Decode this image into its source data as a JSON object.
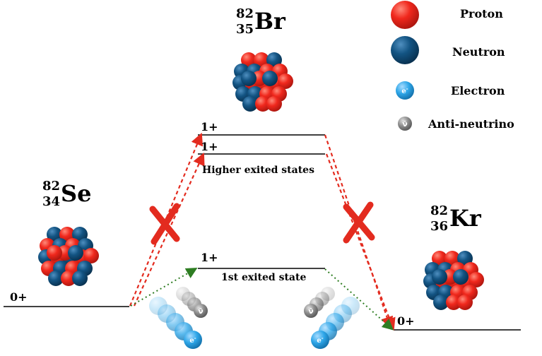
{
  "colors": {
    "proton": "#e8261c",
    "neutron": "#0f4f7e",
    "electron": "#2ea6e8",
    "antineutrino": "#8d8d8d",
    "forbidden_path": "#e32b1f",
    "allowed_path": "#2e7d22",
    "level_line": "#000000"
  },
  "legend": [
    {
      "key": "proton",
      "label": "Proton",
      "icon": "proton-sphere-icon"
    },
    {
      "key": "neutron",
      "label": "Neutron",
      "icon": "neutron-sphere-icon"
    },
    {
      "key": "electron",
      "label": "Electron",
      "icon": "electron-sphere-icon",
      "symbol": "e-"
    },
    {
      "key": "antineutrino",
      "label": "Anti-neutrino",
      "icon": "antineutrino-sphere-icon",
      "symbol": "ν̄"
    }
  ],
  "nuclei": {
    "se": {
      "mass": "82",
      "atomic": "34",
      "symbol": "Se"
    },
    "br": {
      "mass": "82",
      "atomic": "35",
      "symbol": "Br"
    },
    "kr": {
      "mass": "82",
      "atomic": "36",
      "symbol": "Kr"
    }
  },
  "levels": {
    "se_ground": "0+",
    "br_upper_1": "1+",
    "br_upper_2": "1+",
    "br_higher_caption": "Higher exited states",
    "br_first": "1+",
    "br_first_caption": "1st exited state",
    "kr_ground": "0+"
  },
  "particles": {
    "electron_symbol": "e-",
    "antineutrino_symbol": "ν̄"
  }
}
